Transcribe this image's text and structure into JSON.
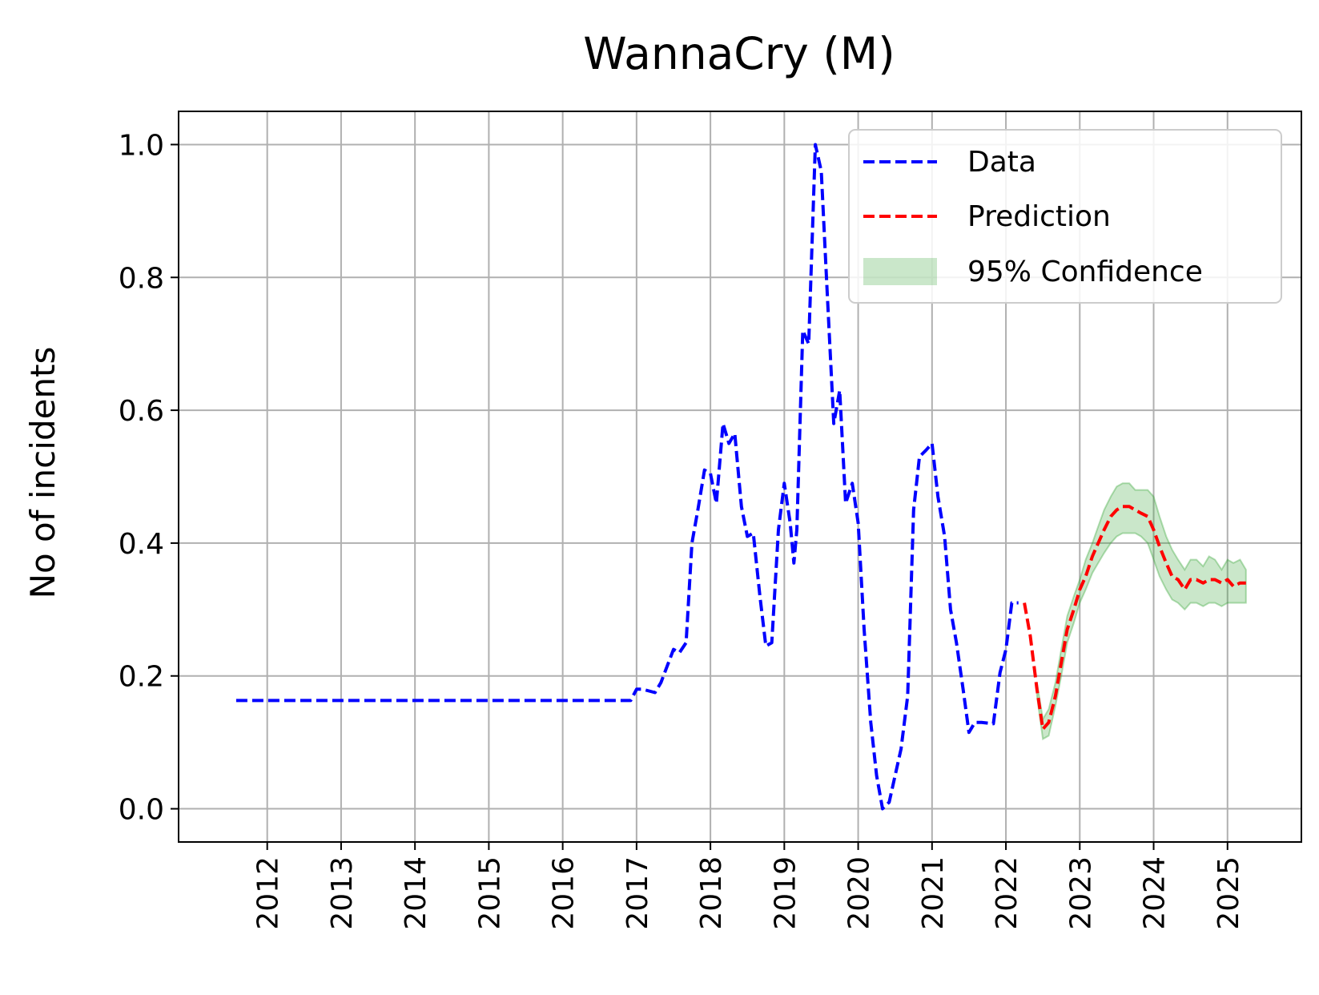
{
  "chart_data": {
    "type": "line",
    "title": "WannaCry (M)",
    "xlabel": "",
    "ylabel": "No of incidents",
    "xlim": [
      2010.8,
      2026.0
    ],
    "ylim": [
      -0.05,
      1.05
    ],
    "x_ticks": [
      "2012",
      "2013",
      "2014",
      "2015",
      "2016",
      "2017",
      "2018",
      "2019",
      "2020",
      "2021",
      "2022",
      "2023",
      "2024",
      "2025"
    ],
    "y_ticks": [
      "0.0",
      "0.2",
      "0.4",
      "0.6",
      "0.8",
      "1.0"
    ],
    "grid": true,
    "legend_position": "top-right",
    "series": [
      {
        "name": "Data",
        "color": "#0000ff",
        "style": "dashed",
        "x": [
          2011.58,
          2016.92,
          2017.0,
          2017.08,
          2017.25,
          2017.33,
          2017.5,
          2017.58,
          2017.67,
          2017.75,
          2017.83,
          2017.92,
          2018.0,
          2018.08,
          2018.17,
          2018.25,
          2018.33,
          2018.42,
          2018.5,
          2018.58,
          2018.67,
          2018.75,
          2018.83,
          2018.92,
          2019.0,
          2019.08,
          2019.13,
          2019.17,
          2019.25,
          2019.33,
          2019.42,
          2019.5,
          2019.58,
          2019.67,
          2019.75,
          2019.83,
          2019.92,
          2020.0,
          2020.08,
          2020.17,
          2020.25,
          2020.33,
          2020.42,
          2020.5,
          2020.58,
          2020.67,
          2020.75,
          2020.83,
          2020.92,
          2021.0,
          2021.08,
          2021.17,
          2021.25,
          2021.33,
          2021.42,
          2021.5,
          2021.58,
          2021.67,
          2021.83,
          2021.92,
          2022.0,
          2022.08,
          2022.17
        ],
        "y": [
          0.163,
          0.163,
          0.18,
          0.18,
          0.175,
          0.19,
          0.24,
          0.235,
          0.25,
          0.4,
          0.45,
          0.51,
          0.505,
          0.46,
          0.58,
          0.55,
          0.565,
          0.455,
          0.41,
          0.415,
          0.32,
          0.245,
          0.25,
          0.42,
          0.49,
          0.43,
          0.37,
          0.42,
          0.72,
          0.7,
          1.0,
          0.96,
          0.78,
          0.58,
          0.63,
          0.46,
          0.49,
          0.43,
          0.27,
          0.13,
          0.05,
          0.0,
          0.01,
          0.05,
          0.09,
          0.17,
          0.45,
          0.53,
          0.54,
          0.55,
          0.47,
          0.41,
          0.3,
          0.25,
          0.18,
          0.115,
          0.13,
          0.13,
          0.128,
          0.205,
          0.24,
          0.31,
          0.31
        ]
      },
      {
        "name": "Prediction",
        "color": "#ff0000",
        "style": "dashed",
        "x": [
          2022.25,
          2022.33,
          2022.42,
          2022.5,
          2022.58,
          2022.67,
          2022.75,
          2022.83,
          2022.92,
          2023.0,
          2023.08,
          2023.17,
          2023.25,
          2023.33,
          2023.42,
          2023.5,
          2023.58,
          2023.67,
          2023.75,
          2023.83,
          2023.92,
          2024.0,
          2024.08,
          2024.17,
          2024.25,
          2024.33,
          2024.42,
          2024.5,
          2024.58,
          2024.67,
          2024.75,
          2024.83,
          2024.92,
          2025.0,
          2025.08,
          2025.17,
          2025.25
        ],
        "y": [
          0.31,
          0.26,
          0.18,
          0.12,
          0.13,
          0.17,
          0.22,
          0.27,
          0.3,
          0.33,
          0.35,
          0.38,
          0.4,
          0.42,
          0.44,
          0.45,
          0.455,
          0.455,
          0.45,
          0.445,
          0.44,
          0.42,
          0.395,
          0.37,
          0.35,
          0.345,
          0.33,
          0.345,
          0.345,
          0.34,
          0.345,
          0.345,
          0.34,
          0.345,
          0.335,
          0.34,
          0.34
        ]
      }
    ],
    "band": {
      "name": "95% Confidence",
      "color": "#2ca02c",
      "opacity": 0.25,
      "x": [
        2022.42,
        2022.5,
        2022.58,
        2022.67,
        2022.75,
        2022.83,
        2022.92,
        2023.0,
        2023.08,
        2023.17,
        2023.25,
        2023.33,
        2023.42,
        2023.5,
        2023.58,
        2023.67,
        2023.75,
        2023.83,
        2023.92,
        2024.0,
        2024.08,
        2024.17,
        2024.25,
        2024.33,
        2024.42,
        2024.5,
        2024.58,
        2024.67,
        2024.75,
        2024.83,
        2024.92,
        2025.0,
        2025.08,
        2025.17,
        2025.25
      ],
      "lower": [
        0.17,
        0.105,
        0.11,
        0.155,
        0.2,
        0.25,
        0.28,
        0.31,
        0.33,
        0.355,
        0.37,
        0.385,
        0.4,
        0.41,
        0.415,
        0.415,
        0.415,
        0.41,
        0.4,
        0.375,
        0.35,
        0.33,
        0.315,
        0.31,
        0.3,
        0.31,
        0.31,
        0.305,
        0.31,
        0.31,
        0.305,
        0.31,
        0.31,
        0.31,
        0.31
      ],
      "upper": [
        0.19,
        0.135,
        0.15,
        0.19,
        0.24,
        0.29,
        0.32,
        0.345,
        0.375,
        0.4,
        0.425,
        0.45,
        0.47,
        0.485,
        0.49,
        0.49,
        0.48,
        0.48,
        0.48,
        0.47,
        0.44,
        0.41,
        0.39,
        0.375,
        0.36,
        0.375,
        0.375,
        0.365,
        0.38,
        0.375,
        0.36,
        0.375,
        0.37,
        0.375,
        0.36
      ]
    },
    "legend": [
      {
        "label": "Data",
        "kind": "line",
        "color": "#0000ff"
      },
      {
        "label": "Prediction",
        "kind": "line",
        "color": "#ff0000"
      },
      {
        "label": "95% Confidence",
        "kind": "patch",
        "color": "#2ca02c"
      }
    ]
  }
}
